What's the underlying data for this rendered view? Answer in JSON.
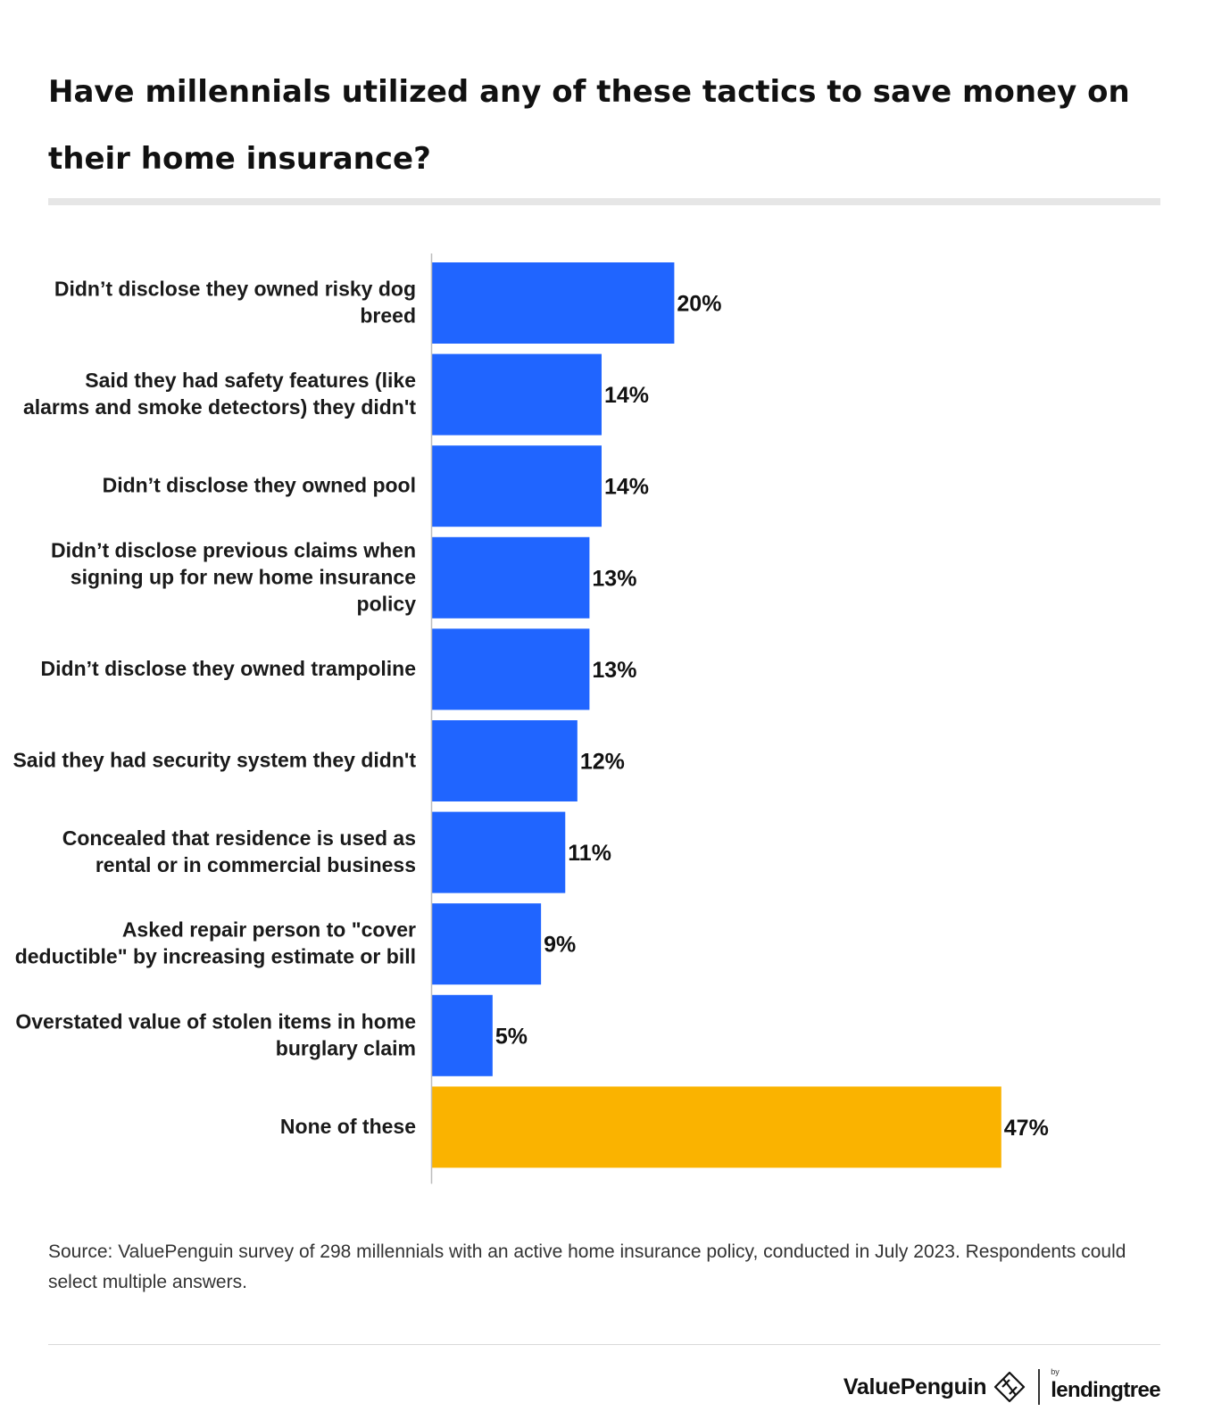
{
  "header": {
    "title": "Have millennials utilized any of these tactics to save money on their home insurance?"
  },
  "chart_data": {
    "type": "bar",
    "orientation": "horizontal",
    "categories": [
      "Didn’t disclose they owned risky dog breed",
      "Said they had safety features (like alarms and smoke detectors) they didn't",
      "Didn’t disclose they owned pool",
      "Didn’t disclose previous claims when signing up for new home insurance policy",
      "Didn’t disclose they owned trampoline",
      "Said they had security system they didn't",
      "Concealed that residence is used as rental or in commercial business",
      "Asked repair person to \"cover deductible\" by increasing estimate or bill",
      "Overstated value of stolen items in home burglary claim",
      "None of these"
    ],
    "values": [
      20,
      14,
      14,
      13,
      13,
      12,
      11,
      9,
      5,
      47
    ],
    "value_labels": [
      "20%",
      "14%",
      "14%",
      "13%",
      "13%",
      "12%",
      "11%",
      "9%",
      "5%",
      "47%"
    ],
    "colors": [
      "#2065ff",
      "#2065ff",
      "#2065ff",
      "#2065ff",
      "#2065ff",
      "#2065ff",
      "#2065ff",
      "#2065ff",
      "#2065ff",
      "#fab300"
    ],
    "unit": "%",
    "xlim": [
      0,
      50
    ],
    "grid": false,
    "legend": "none"
  },
  "source": "Source: ValuePenguin survey of 298 millennials with an active home insurance policy, conducted in July 2023. Respondents could select multiple answers.",
  "footer": {
    "brand_name": "ValuePenguin",
    "brand_icon": "valuepenguin-diamond-logo-icon",
    "partner_by": "by",
    "partner_name": "lendingtree"
  }
}
